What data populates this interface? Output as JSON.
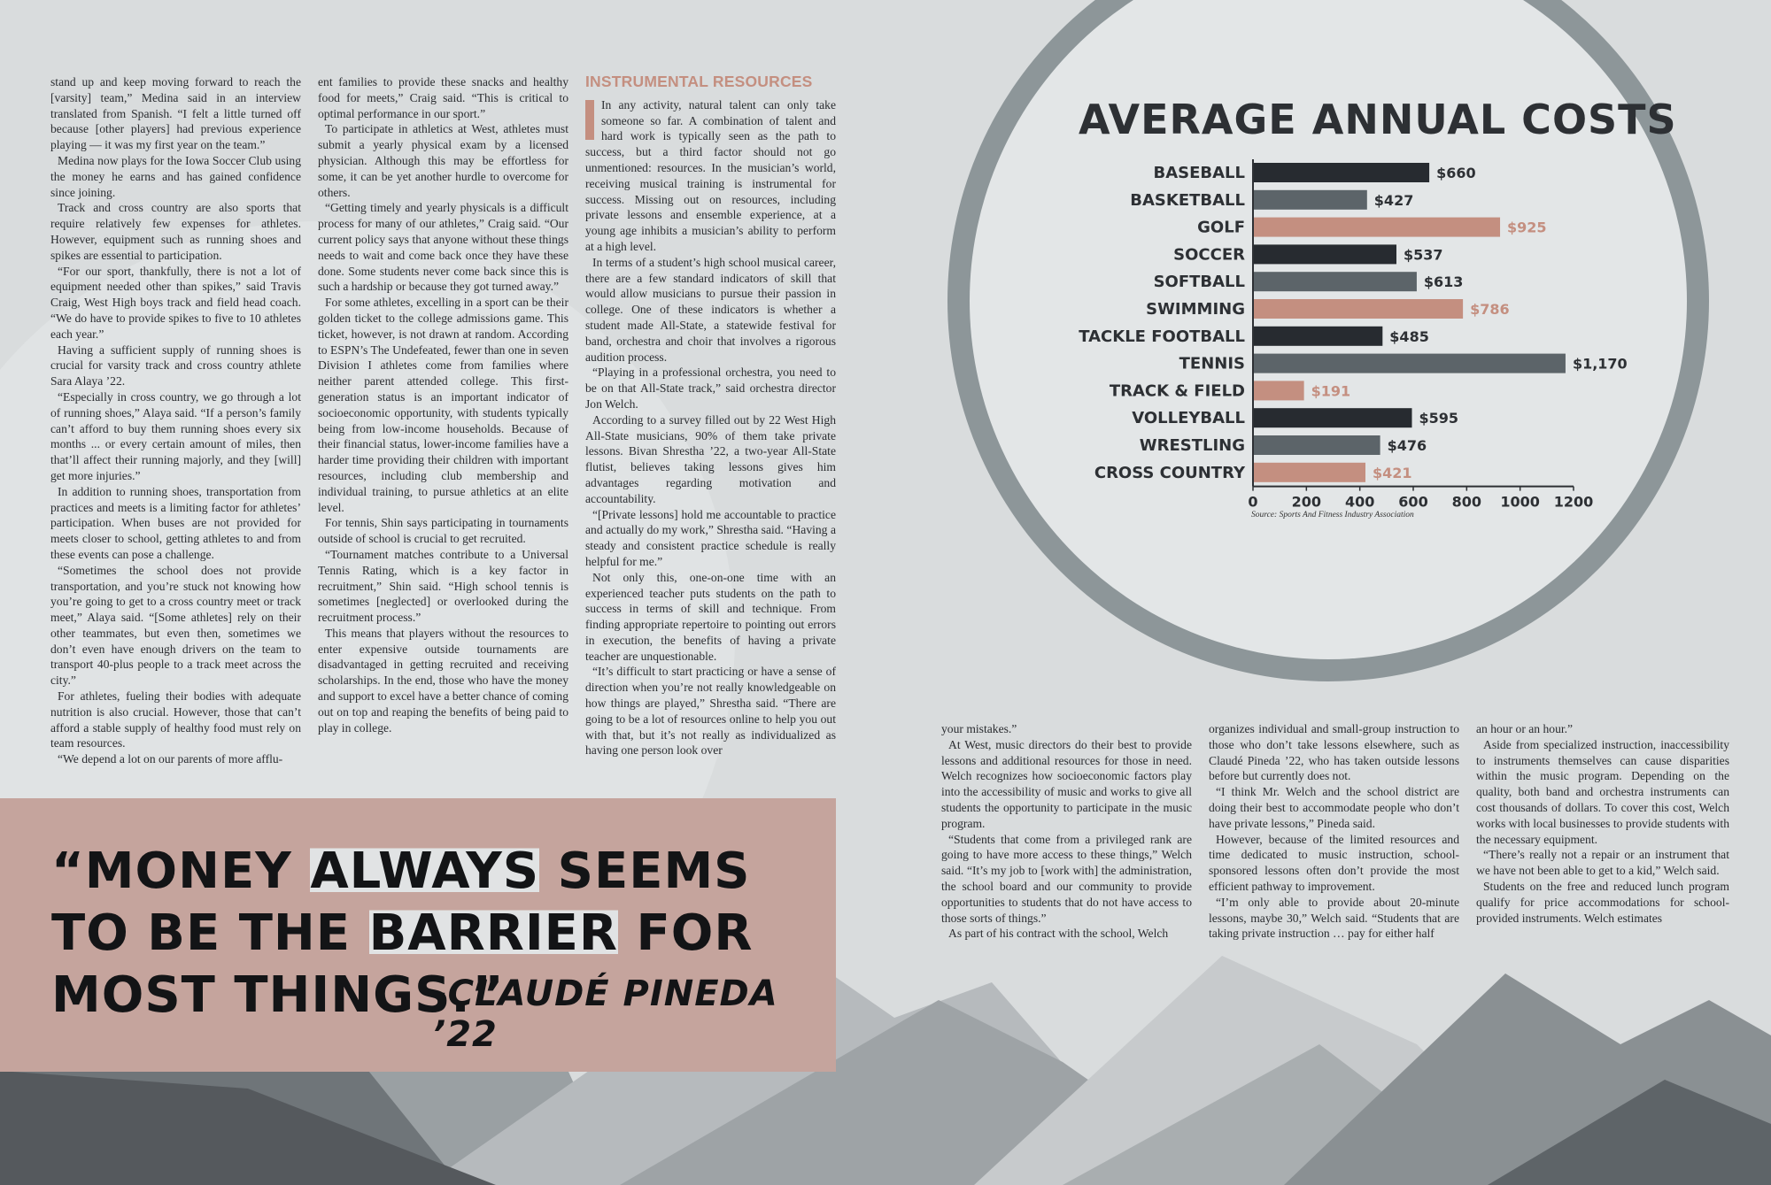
{
  "columns": {
    "col1": [
      "stand up and keep moving forward to reach the [varsity] team,” Medina said in an interview translated from Spanish. “I felt a little turned off because [other players] had previous experience playing — it was my first year on the team.”",
      "Medina now plays for the Iowa Soccer Club using the money he earns and has gained confidence since joining.",
      "Track and cross country are also sports that require relatively few expenses for athletes. However, equipment such as running shoes and spikes are essential to participation.",
      "“For our sport, thankfully, there is not a lot of equipment needed other than spikes,” said Travis Craig, West High boys track and field head coach. “We do have to provide spikes to five to 10 athletes each year.”",
      "Having a sufficient supply of running shoes is crucial for varsity track and cross country athlete Sara Alaya ’22.",
      "“Especially in cross country, we go through a lot of running shoes,” Alaya said. “If a person’s family can’t afford to buy them running shoes every six months ... or every certain amount of miles, then that’ll affect their running majorly, and they [will] get more injuries.”",
      "In addition to running shoes, transportation from practices and meets is a limiting factor for athletes’ participation. When buses are not provided for meets closer to school, getting athletes to and from these events can pose a challenge.",
      "“Sometimes the school does not provide transportation, and you’re stuck not knowing how you’re going to get to a cross country meet or track meet,” Alaya said. “[Some athletes] rely on their other teammates, but even then, sometimes we don’t even have enough drivers on the team to transport 40-plus people to a track meet across the city.”",
      "For athletes, fueling their bodies with adequate nutrition is also crucial. However, those that can’t afford a stable supply of healthy food must rely on team resources.",
      "“We depend a lot on our parents of more afflu-"
    ],
    "col2": [
      "ent families to provide these snacks and healthy food for meets,” Craig said. “This is critical to optimal performance in our sport.”",
      "To participate in athletics at West, athletes must submit a yearly physical exam by a licensed physician. Although this may be effortless for some, it can be yet another hurdle to overcome for others.",
      "“Getting timely and yearly physicals is a difficult process for many of our athletes,” Craig said. “Our current policy says that anyone without these things needs to wait and come back once they have these done. Some students never come back since this is such a hardship or because they got turned away.”",
      "For some athletes, excelling in a sport can be their golden ticket to the college admissions game. This ticket, however, is not drawn at random. According to ESPN’s The Undefeated, fewer than one in seven Division I athletes come from families where neither parent attended college. This first-generation status is an important indicator of socioeconomic opportunity, with students typically being from low-income households. Because of their financial status, lower-income families have a harder time providing their children with important resources, including club membership and individual training, to pursue athletics at an elite level.",
      "For tennis, Shin says participating in tournaments outside of school is crucial to get recruited.",
      "“Tournament matches contribute to a Universal Tennis Rating, which is a key factor in recruitment,” Shin said. “High school tennis is sometimes [neglected] or overlooked during the recruitment process.”",
      "This means that players without the resources to enter expensive outside tournaments are disadvantaged in getting recruited and receiving scholarships. In the end, those who have the money and support to excel have a better chance of coming out on top and reaping the benefits of being paid to play in college."
    ],
    "col3_heading": "INSTRUMENTAL RESOURCES",
    "col3": [
      "In any activity, natural talent can only take someone so far. A combination of talent and hard work is typically seen as the path to success, but a third factor should not go unmentioned: resources. In the musician’s world, receiving musical training is instrumental for success. Missing out on resources, including private lessons and ensemble experience, at a young age inhibits a musician’s ability to perform at a high level.",
      "In terms of a student’s high school musical career, there are a few standard indicators of skill that would allow musicians to pursue their passion in college. One of these indicators is whether a student made All-State, a statewide festival for band, orchestra and choir that involves a rigorous audition process.",
      "“Playing in a professional orchestra, you need to be on that All-State track,” said orchestra director Jon Welch.",
      "According to a survey filled out by 22 West High All-State musicians, 90% of them take private lessons. Bivan Shrestha ’22, a two-year All-State flutist, believes taking lessons gives him advantages regarding motivation and accountability.",
      "“[Private lessons] hold me accountable to practice and actually do my work,” Shrestha said. “Having a steady and consistent practice schedule is really helpful for me.”",
      "Not only this, one-on-one time with an experienced teacher puts students on the path to success in terms of skill and technique. From finding appropriate repertoire to pointing out errors in execution, the benefits of having a private teacher are unquestionable.",
      "“It’s difficult to start practicing or have a sense of direction when you’re not really knowledgeable on how things are played,” Shrestha said. “There are going to be a lot of resources online to help you out with that, but it’s not really as individualized as having one person look over"
    ],
    "col4": [
      "your mistakes.”",
      "At West, music directors do their best to provide lessons and additional resources for those in need. Welch recognizes how socioeconomic factors play into the accessibility of music and works to give all students the opportunity to participate in the music program.",
      "“Students that come from a privileged rank are going to have more access to these things,” Welch said. “It’s my job to [work with] the administration, the school board and our community to provide opportunities to students that do not have access to those sorts of things.”",
      "As part of his contract with the school, Welch"
    ],
    "col5": [
      "organizes individual and small-group instruction to those who don’t take lessons elsewhere, such as Claudé Pineda ’22, who has taken outside lessons before but currently does not.",
      "“I think Mr. Welch and the school district are doing their best to accommodate people who don’t have private lessons,” Pineda said.",
      "However, because of the limited resources and time dedicated to music instruction, school-sponsored lessons often don’t provide the most efficient pathway to improvement.",
      "“I’m only able to provide about 20-minute lessons, maybe 30,” Welch said. “Students that are taking private instruction … pay for either half"
    ],
    "col6": [
      "an hour or an hour.”",
      "Aside from specialized instruction, inaccessibility to instruments themselves can cause disparities within the music program. Depending on the quality, both band and orchestra instruments can cost thousands of dollars. To cover this cost, Welch works with local businesses to provide students with the necessary equipment.",
      "“There’s really not a repair or an instrument that we have not been able to get to a kid,” Welch said.",
      "Students on the free and reduced lunch program qualify for price accommodations for school-provided instruments. Welch estimates"
    ]
  },
  "quote": {
    "part1": "“MONEY ",
    "part2": "ALWAYS",
    "part3": " SEEMS TO BE THE ",
    "part4": "BARRIER",
    "part5": " FOR MOST THINGS.”",
    "attribution": "-CLAUDÉ PINEDA ’22"
  },
  "chart_data": {
    "type": "bar",
    "orientation": "horizontal",
    "title": "AVERAGE ANNUAL COSTS",
    "source": "Source: Sports And Fitness Industry Association",
    "categories": [
      "BASEBALL",
      "BASKETBALL",
      "GOLF",
      "SOCCER",
      "SOFTBALL",
      "SWIMMING",
      "TACKLE FOOTBALL",
      "TENNIS",
      "TRACK & FIELD",
      "VOLLEYBALL",
      "WRESTLING",
      "CROSS COUNTRY"
    ],
    "values": [
      660,
      427,
      925,
      537,
      613,
      786,
      485,
      1170,
      191,
      595,
      476,
      421
    ],
    "value_labels": [
      "$660",
      "$427",
      "$925",
      "$537",
      "$613",
      "$786",
      "$485",
      "$1,170",
      "$191",
      "$595",
      "$476",
      "$421"
    ],
    "xlim": [
      0,
      1200
    ],
    "xticks": [
      0,
      200,
      400,
      600,
      800,
      1000,
      1200
    ],
    "grid": false,
    "colors": [
      "#272b30",
      "#5c6469",
      "#c48f80"
    ]
  },
  "palette": {
    "page": "#d9dcdd",
    "quote_box": "#c5a49d",
    "accent": "#c48f80",
    "ring": "#8a9396",
    "disc": "#e2e5e6"
  }
}
